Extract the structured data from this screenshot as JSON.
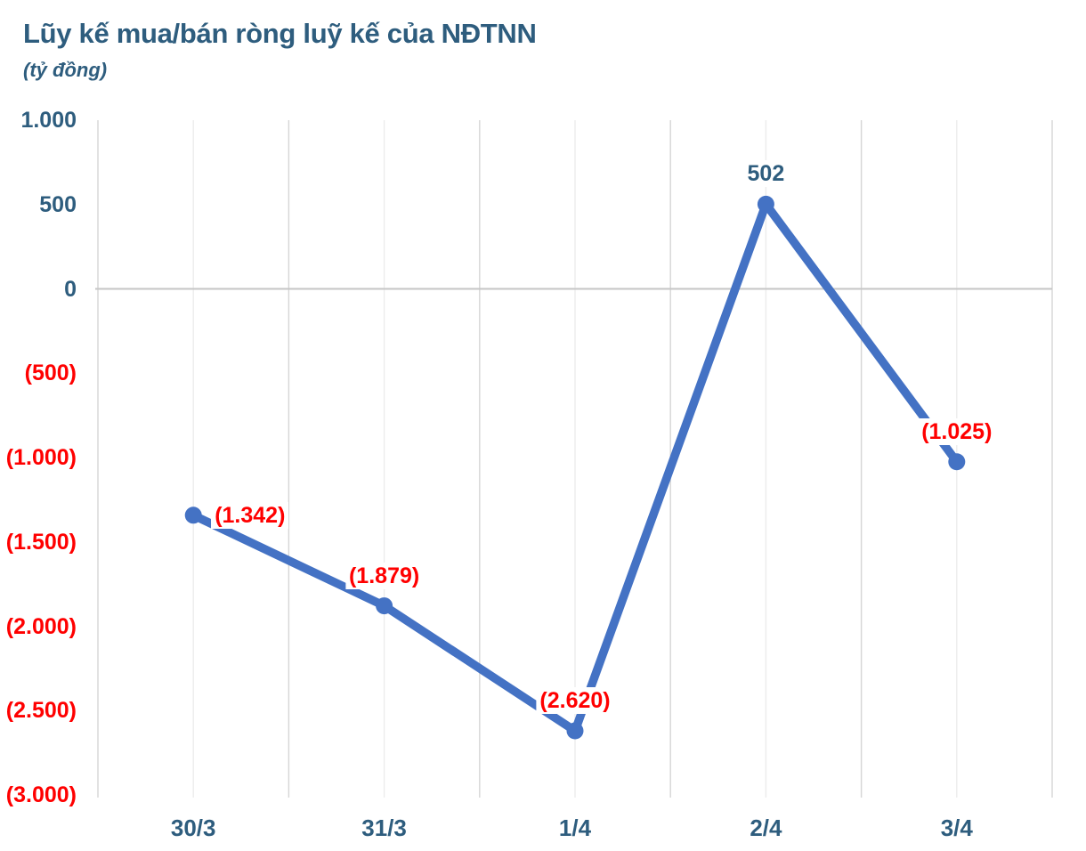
{
  "colors": {
    "accent_blue": "#4472C4",
    "axis_text_blue": "#2E5D7E",
    "negative_red": "#FF0000",
    "gridline_major": "#D6D6D6",
    "gridline_minor": "#ECECEC",
    "zero_line": "#C6C6C6",
    "background": "#FFFFFF"
  },
  "chart_data": {
    "type": "line",
    "title": "Lũy kế mua/bán ròng luỹ kế của NĐTNN",
    "subtitle": "(tỷ đồng)",
    "unit": "tỷ đồng",
    "categories": [
      "30/3",
      "31/3",
      "1/4",
      "2/4",
      "3/4"
    ],
    "series": [
      {
        "name": "Lũy kế mua/bán ròng luỹ kế của NĐTNN",
        "values": [
          -1342,
          -1879,
          -2620,
          502,
          -1025
        ],
        "point_labels": [
          "(1.342)",
          "(1.879)",
          "(2.620)",
          "502",
          "(1.025)"
        ]
      }
    ],
    "ylim": [
      -3000,
      1000
    ],
    "yticks": [
      1000,
      500,
      0,
      -500,
      -1000,
      -1500,
      -2000,
      -2500,
      -3000
    ],
    "ytick_labels": [
      "1.000",
      "500",
      "0",
      "(500)",
      "(1.000)",
      "(1.500)",
      "(2.000)",
      "(2.500)",
      "(3.000)"
    ],
    "label_positions": [
      "right",
      "above",
      "above",
      "above",
      "above"
    ],
    "grid": "vertical major gridlines at category boundaries, lighter minor gridlines at category centers, horizontal line at zero only",
    "legend_position": "none",
    "negative_values_style": "red text in parentheses",
    "positive_values_style": "dark blue text"
  }
}
